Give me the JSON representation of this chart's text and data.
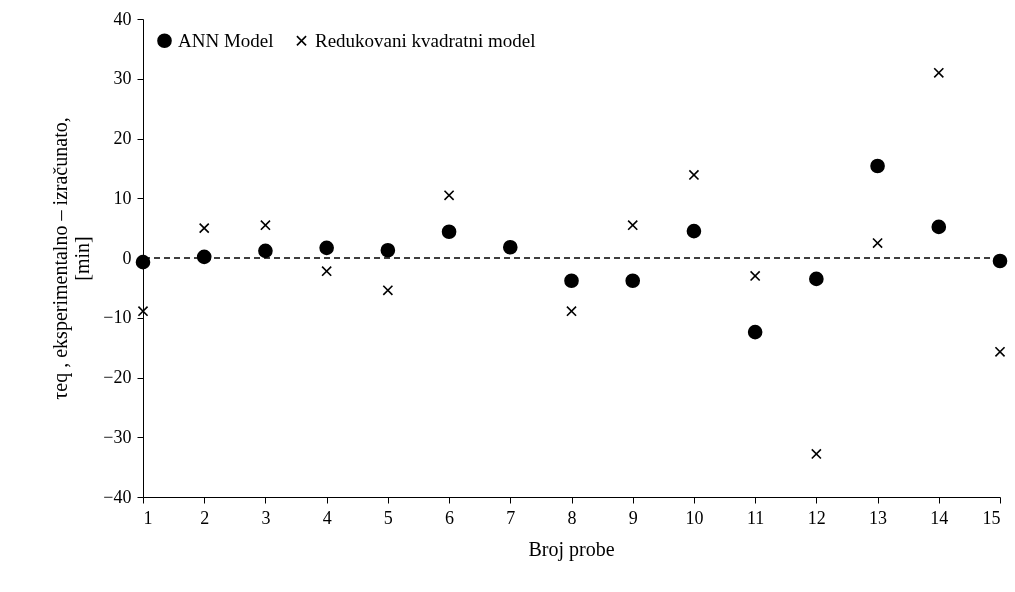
{
  "chart_data": {
    "type": "scatter",
    "xlabel": "Broj probe",
    "ylabel": "τeq , eksperimentalno – izračunato, [min]",
    "x": [
      1,
      2,
      3,
      4,
      5,
      6,
      7,
      8,
      9,
      10,
      11,
      12,
      13,
      14,
      15
    ],
    "xlim": [
      1,
      15
    ],
    "xticks": [
      1,
      2,
      3,
      4,
      5,
      6,
      7,
      8,
      9,
      10,
      11,
      12,
      13,
      14,
      15
    ],
    "ylim": [
      -40,
      40
    ],
    "yticks": [
      -40,
      -30,
      -20,
      -10,
      0,
      10,
      20,
      30,
      40
    ],
    "grid": false,
    "legend": "top left",
    "series": [
      {
        "name": "ANN Model",
        "color": "#000000",
        "marker": "circle",
        "values": [
          -0.7,
          0.2,
          1.2,
          1.7,
          1.3,
          4.4,
          1.8,
          -3.8,
          -3.8,
          4.5,
          -12.4,
          -3.5,
          15.4,
          5.2,
          -0.5
        ]
      },
      {
        "name": "Redukovani kvadratni model",
        "color": "#000000",
        "marker": "cross",
        "values": [
          -8.9,
          5.0,
          5.5,
          -2.2,
          -5.4,
          10.5,
          null,
          -8.9,
          5.5,
          13.9,
          -3.0,
          -32.8,
          2.5,
          31.0,
          -15.7
        ]
      }
    ],
    "ref_lines": [
      {
        "axis": "y",
        "value": 0,
        "line_style": "dashed",
        "color": "#000000"
      }
    ]
  }
}
